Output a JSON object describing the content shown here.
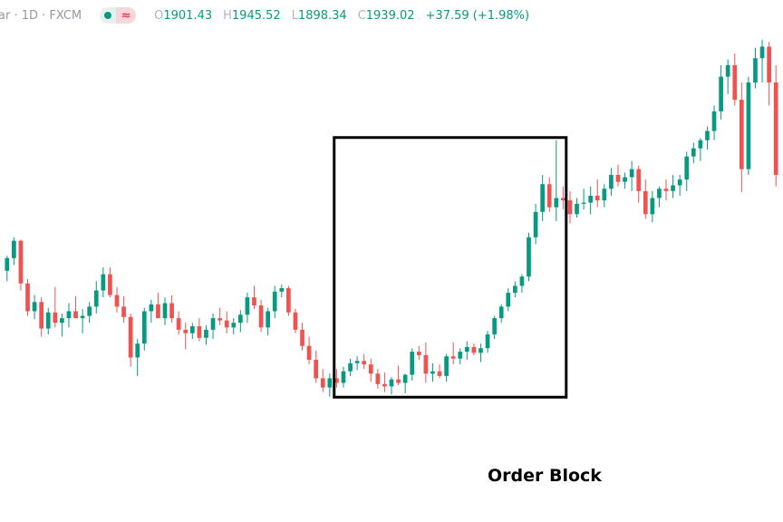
{
  "header": {
    "symbol": "ar · 1D · FXCM",
    "indicator_icon": "wave-icon",
    "open_key": "O",
    "open": "1901.43",
    "high_key": "H",
    "high": "1945.52",
    "low_key": "L",
    "low": "1898.34",
    "close_key": "C",
    "close": "1939.02",
    "change": "+37.59 (+1.98%)"
  },
  "colors": {
    "up": "#089981",
    "down": "#ef5350",
    "box": "#000000"
  },
  "annotation": {
    "label": "Order Block"
  },
  "chart_data": {
    "type": "candlestick",
    "title": "",
    "xlabel": "",
    "ylabel": "",
    "ylim": [
      1560,
      1960
    ],
    "order_block_range": {
      "start_index": 48,
      "end_index": 81
    },
    "candles": [
      [
        1757,
        1770,
        1748,
        1768
      ],
      [
        1768,
        1786,
        1762,
        1783
      ],
      [
        1783,
        1784,
        1740,
        1746
      ],
      [
        1746,
        1750,
        1718,
        1722
      ],
      [
        1722,
        1736,
        1715,
        1730
      ],
      [
        1730,
        1734,
        1700,
        1707
      ],
      [
        1707,
        1725,
        1702,
        1721
      ],
      [
        1721,
        1743,
        1708,
        1712
      ],
      [
        1712,
        1720,
        1700,
        1716
      ],
      [
        1716,
        1729,
        1708,
        1722
      ],
      [
        1722,
        1735,
        1716,
        1716
      ],
      [
        1716,
        1724,
        1703,
        1718
      ],
      [
        1718,
        1730,
        1712,
        1726
      ],
      [
        1726,
        1748,
        1720,
        1740
      ],
      [
        1740,
        1760,
        1734,
        1754
      ],
      [
        1754,
        1760,
        1734,
        1736
      ],
      [
        1736,
        1743,
        1721,
        1726
      ],
      [
        1726,
        1735,
        1712,
        1717
      ],
      [
        1717,
        1720,
        1674,
        1682
      ],
      [
        1682,
        1698,
        1666,
        1694
      ],
      [
        1694,
        1725,
        1688,
        1722
      ],
      [
        1722,
        1732,
        1712,
        1728
      ],
      [
        1728,
        1738,
        1716,
        1716
      ],
      [
        1716,
        1734,
        1710,
        1729
      ],
      [
        1729,
        1736,
        1712,
        1716
      ],
      [
        1716,
        1722,
        1702,
        1706
      ],
      [
        1706,
        1712,
        1689,
        1703
      ],
      [
        1703,
        1712,
        1698,
        1709
      ],
      [
        1709,
        1716,
        1696,
        1699
      ],
      [
        1699,
        1710,
        1693,
        1706
      ],
      [
        1706,
        1720,
        1698,
        1716
      ],
      [
        1716,
        1725,
        1710,
        1714
      ],
      [
        1714,
        1722,
        1703,
        1708
      ],
      [
        1708,
        1716,
        1702,
        1712
      ],
      [
        1712,
        1723,
        1704,
        1719
      ],
      [
        1719,
        1738,
        1712,
        1734
      ],
      [
        1734,
        1744,
        1724,
        1727
      ],
      [
        1727,
        1732,
        1704,
        1708
      ],
      [
        1708,
        1725,
        1701,
        1722
      ],
      [
        1722,
        1744,
        1716,
        1739
      ],
      [
        1739,
        1745,
        1734,
        1742
      ],
      [
        1742,
        1744,
        1718,
        1721
      ],
      [
        1721,
        1724,
        1703,
        1706
      ],
      [
        1706,
        1712,
        1688,
        1692
      ],
      [
        1692,
        1700,
        1676,
        1680
      ],
      [
        1680,
        1688,
        1660,
        1664
      ],
      [
        1664,
        1672,
        1652,
        1656
      ],
      [
        1656,
        1668,
        1648,
        1664
      ],
      [
        1664,
        1672,
        1656,
        1660
      ],
      [
        1660,
        1674,
        1656,
        1670
      ],
      [
        1670,
        1681,
        1666,
        1677
      ],
      [
        1677,
        1683,
        1671,
        1679
      ],
      [
        1679,
        1685,
        1672,
        1676
      ],
      [
        1676,
        1681,
        1661,
        1668
      ],
      [
        1668,
        1672,
        1655,
        1659
      ],
      [
        1659,
        1669,
        1652,
        1657
      ],
      [
        1657,
        1665,
        1650,
        1663
      ],
      [
        1663,
        1675,
        1658,
        1660
      ],
      [
        1660,
        1668,
        1651,
        1667
      ],
      [
        1667,
        1690,
        1662,
        1687
      ],
      [
        1687,
        1692,
        1680,
        1684
      ],
      [
        1684,
        1695,
        1660,
        1668
      ],
      [
        1668,
        1677,
        1661,
        1670
      ],
      [
        1670,
        1676,
        1664,
        1666
      ],
      [
        1666,
        1685,
        1661,
        1683
      ],
      [
        1683,
        1695,
        1676,
        1681
      ],
      [
        1681,
        1690,
        1676,
        1687
      ],
      [
        1687,
        1696,
        1680,
        1691
      ],
      [
        1691,
        1694,
        1684,
        1686
      ],
      [
        1686,
        1694,
        1678,
        1690
      ],
      [
        1690,
        1705,
        1686,
        1702
      ],
      [
        1702,
        1718,
        1698,
        1716
      ],
      [
        1716,
        1728,
        1712,
        1726
      ],
      [
        1726,
        1742,
        1722,
        1738
      ],
      [
        1738,
        1748,
        1734,
        1744
      ],
      [
        1744,
        1754,
        1738,
        1752
      ],
      [
        1752,
        1790,
        1748,
        1786
      ],
      [
        1786,
        1815,
        1780,
        1808
      ],
      [
        1808,
        1840,
        1800,
        1832
      ],
      [
        1832,
        1838,
        1808,
        1812
      ],
      [
        1812,
        1870,
        1800,
        1820
      ],
      [
        1820,
        1830,
        1810,
        1818
      ],
      [
        1818,
        1826,
        1798,
        1806
      ],
      [
        1806,
        1820,
        1803,
        1815
      ],
      [
        1815,
        1828,
        1810,
        1816
      ],
      [
        1816,
        1830,
        1806,
        1822
      ],
      [
        1822,
        1836,
        1812,
        1818
      ],
      [
        1818,
        1832,
        1812,
        1828
      ],
      [
        1828,
        1846,
        1822,
        1840
      ],
      [
        1840,
        1849,
        1830,
        1834
      ],
      [
        1834,
        1842,
        1828,
        1838
      ],
      [
        1838,
        1852,
        1826,
        1845
      ],
      [
        1845,
        1848,
        1816,
        1826
      ],
      [
        1826,
        1836,
        1802,
        1806
      ],
      [
        1806,
        1826,
        1799,
        1820
      ],
      [
        1820,
        1830,
        1812,
        1828
      ],
      [
        1828,
        1836,
        1818,
        1826
      ],
      [
        1826,
        1840,
        1820,
        1831
      ],
      [
        1831,
        1840,
        1822,
        1836
      ],
      [
        1836,
        1860,
        1826,
        1856
      ],
      [
        1856,
        1868,
        1850,
        1863
      ],
      [
        1863,
        1872,
        1852,
        1870
      ],
      [
        1870,
        1882,
        1862,
        1878
      ],
      [
        1878,
        1900,
        1870,
        1895
      ],
      [
        1895,
        1935,
        1888,
        1925
      ],
      [
        1925,
        1940,
        1910,
        1935
      ],
      [
        1935,
        1945,
        1900,
        1905
      ],
      [
        1905,
        1920,
        1825,
        1845
      ],
      [
        1845,
        1925,
        1840,
        1920
      ],
      [
        1920,
        1950,
        1915,
        1941
      ],
      [
        1941,
        1957,
        1920,
        1951
      ],
      [
        1951,
        1955,
        1900,
        1920
      ],
      [
        1920,
        1935,
        1830,
        1840
      ]
    ]
  }
}
